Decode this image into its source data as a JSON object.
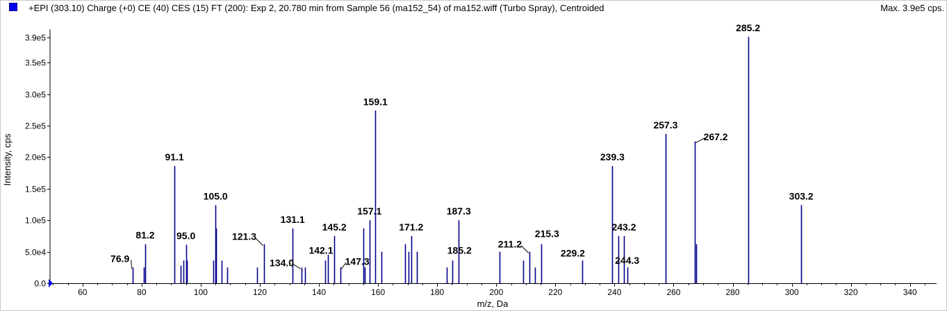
{
  "header": {
    "title": "+EPI (303.10) Charge (+0) CE (40) CES (15) FT (200): Exp 2, 20.780 min from Sample 56 (ma152_54) of ma152.wiff (Turbo Spray), Centroided",
    "max_label": "Max. 3.9e5 cps."
  },
  "colors": {
    "peak": "#00008b",
    "legend": "#0000ee",
    "axis": "#000000"
  },
  "chart_data": {
    "type": "bar",
    "xlabel": "m/z, Da",
    "ylabel": "Intensity, cps",
    "xlim": [
      49,
      349
    ],
    "ylim": [
      0,
      400000
    ],
    "x_ticks": [
      60,
      80,
      100,
      120,
      140,
      160,
      180,
      200,
      220,
      240,
      260,
      280,
      300,
      320,
      340
    ],
    "y_ticks": [
      {
        "value": 0,
        "label": "0.0"
      },
      {
        "value": 50000,
        "label": "5.0e4"
      },
      {
        "value": 100000,
        "label": "1.0e5"
      },
      {
        "value": 150000,
        "label": "1.5e5"
      },
      {
        "value": 200000,
        "label": "2.0e5"
      },
      {
        "value": 250000,
        "label": "2.5e5"
      },
      {
        "value": 300000,
        "label": "3.0e5"
      },
      {
        "value": 350000,
        "label": "3.5e5"
      },
      {
        "value": 390000,
        "label": "3.9e5"
      }
    ],
    "peaks": [
      {
        "mz": 76.9,
        "intensity": 25000
      },
      {
        "mz": 80.8,
        "intensity": 25000
      },
      {
        "mz": 81.2,
        "intensity": 62000
      },
      {
        "mz": 91.1,
        "intensity": 186000
      },
      {
        "mz": 93.1,
        "intensity": 28000
      },
      {
        "mz": 94.1,
        "intensity": 36000
      },
      {
        "mz": 95.0,
        "intensity": 61000
      },
      {
        "mz": 95.4,
        "intensity": 36000
      },
      {
        "mz": 104.3,
        "intensity": 36000
      },
      {
        "mz": 105.0,
        "intensity": 124000
      },
      {
        "mz": 105.3,
        "intensity": 87000
      },
      {
        "mz": 107.0,
        "intensity": 36000
      },
      {
        "mz": 108.9,
        "intensity": 25000
      },
      {
        "mz": 119.1,
        "intensity": 25000
      },
      {
        "mz": 121.3,
        "intensity": 62000
      },
      {
        "mz": 131.1,
        "intensity": 87000
      },
      {
        "mz": 134.0,
        "intensity": 25000
      },
      {
        "mz": 135.2,
        "intensity": 25000
      },
      {
        "mz": 142.1,
        "intensity": 36000
      },
      {
        "mz": 143.1,
        "intensity": 45000
      },
      {
        "mz": 145.2,
        "intensity": 75000
      },
      {
        "mz": 147.3,
        "intensity": 25000
      },
      {
        "mz": 155.1,
        "intensity": 87000
      },
      {
        "mz": 155.6,
        "intensity": 25000
      },
      {
        "mz": 157.1,
        "intensity": 100000
      },
      {
        "mz": 159.1,
        "intensity": 274000
      },
      {
        "mz": 161.1,
        "intensity": 50000
      },
      {
        "mz": 169.1,
        "intensity": 62000
      },
      {
        "mz": 170.2,
        "intensity": 50000
      },
      {
        "mz": 171.2,
        "intensity": 75000
      },
      {
        "mz": 173.1,
        "intensity": 50000
      },
      {
        "mz": 183.3,
        "intensity": 25000
      },
      {
        "mz": 185.2,
        "intensity": 36000
      },
      {
        "mz": 187.3,
        "intensity": 100000
      },
      {
        "mz": 201.2,
        "intensity": 50000
      },
      {
        "mz": 209.2,
        "intensity": 36000
      },
      {
        "mz": 211.2,
        "intensity": 50000
      },
      {
        "mz": 213.2,
        "intensity": 25000
      },
      {
        "mz": 215.3,
        "intensity": 62000
      },
      {
        "mz": 229.2,
        "intensity": 36000
      },
      {
        "mz": 239.3,
        "intensity": 186000
      },
      {
        "mz": 241.3,
        "intensity": 75000
      },
      {
        "mz": 243.2,
        "intensity": 75000
      },
      {
        "mz": 244.3,
        "intensity": 25000
      },
      {
        "mz": 257.3,
        "intensity": 237000
      },
      {
        "mz": 267.2,
        "intensity": 225000
      },
      {
        "mz": 267.6,
        "intensity": 62000
      },
      {
        "mz": 285.2,
        "intensity": 391000
      },
      {
        "mz": 303.2,
        "intensity": 124000
      }
    ],
    "annotations": [
      {
        "label": "76.9",
        "mz": 76.9
      },
      {
        "label": "81.2",
        "mz": 81.2
      },
      {
        "label": "91.1",
        "mz": 91.1
      },
      {
        "label": "95.0",
        "mz": 95.0
      },
      {
        "label": "105.0",
        "mz": 105.0
      },
      {
        "label": "121.3",
        "mz": 121.3
      },
      {
        "label": "131.1",
        "mz": 131.1
      },
      {
        "label": "134.0",
        "mz": 134.0
      },
      {
        "label": "142.1",
        "mz": 142.1
      },
      {
        "label": "145.2",
        "mz": 145.2
      },
      {
        "label": "147.3",
        "mz": 147.3
      },
      {
        "label": "157.1",
        "mz": 157.1
      },
      {
        "label": "159.1",
        "mz": 159.1
      },
      {
        "label": "171.2",
        "mz": 171.2
      },
      {
        "label": "185.2",
        "mz": 185.2
      },
      {
        "label": "187.3",
        "mz": 187.3
      },
      {
        "label": "211.2",
        "mz": 211.2
      },
      {
        "label": "215.3",
        "mz": 215.3
      },
      {
        "label": "229.2",
        "mz": 229.2
      },
      {
        "label": "239.3",
        "mz": 239.3
      },
      {
        "label": "243.2",
        "mz": 243.2
      },
      {
        "label": "244.3",
        "mz": 244.3
      },
      {
        "label": "257.3",
        "mz": 257.3
      },
      {
        "label": "267.2",
        "mz": 267.2
      },
      {
        "label": "285.2",
        "mz": 285.2
      },
      {
        "label": "303.2",
        "mz": 303.2
      }
    ]
  }
}
